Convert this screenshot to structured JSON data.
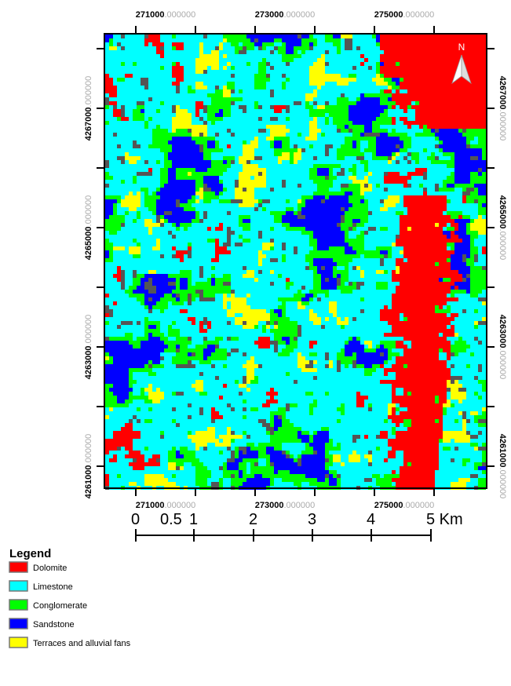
{
  "map": {
    "top_labels": [
      {
        "integer": "271000",
        "decimals": ".000000"
      },
      {
        "integer": "273000",
        "decimals": ".000000"
      },
      {
        "integer": "275000",
        "decimals": ".000000"
      }
    ],
    "bottom_labels": [
      {
        "integer": "271000",
        "decimals": ".000000"
      },
      {
        "integer": "273000",
        "decimals": ".000000"
      },
      {
        "integer": "275000",
        "decimals": ".000000"
      }
    ],
    "left_labels": [
      {
        "integer": "4267000",
        "decimals": ".000000"
      },
      {
        "integer": "4265000",
        "decimals": ".000000"
      },
      {
        "integer": "4263000",
        "decimals": ".000000"
      },
      {
        "integer": "4261000",
        "decimals": ".000000"
      }
    ],
    "right_labels": [
      {
        "integer": "4267000",
        "decimals": ".000000"
      },
      {
        "integer": "4265000",
        "decimals": ".000000"
      },
      {
        "integer": "4263000",
        "decimals": ".000000"
      },
      {
        "integer": "4261000",
        "decimals": ".000000"
      }
    ],
    "north": "N"
  },
  "scale_bar": {
    "labels": [
      "0",
      "0.5",
      "1",
      "2",
      "3",
      "4",
      "5 Km"
    ]
  },
  "legend": {
    "title": "Legend",
    "items": [
      "Dolomite",
      "Limestone",
      "Conglomerate",
      "Sandstone",
      "Terraces and alluvial fans"
    ]
  }
}
